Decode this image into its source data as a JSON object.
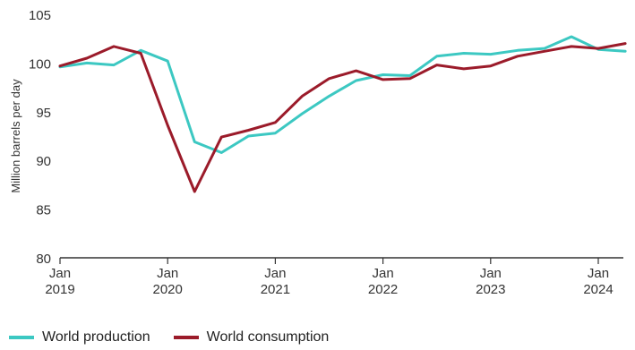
{
  "chart_data": {
    "type": "line",
    "title": "",
    "xlabel": "",
    "ylabel": "Million barrels per day",
    "ylim": [
      80,
      105
    ],
    "yticks": [
      80,
      85,
      90,
      95,
      100,
      105
    ],
    "xlim": [
      2019.0,
      2024.5
    ],
    "xticks": [
      {
        "x": 2019,
        "line1": "Jan",
        "line2": "2019"
      },
      {
        "x": 2020,
        "line1": "Jan",
        "line2": "2020"
      },
      {
        "x": 2021,
        "line1": "Jan",
        "line2": "2021"
      },
      {
        "x": 2022,
        "line1": "Jan",
        "line2": "2022"
      },
      {
        "x": 2023,
        "line1": "Jan",
        "line2": "2023"
      },
      {
        "x": 2024,
        "line1": "Jan",
        "line2": "2024"
      }
    ],
    "grid": false,
    "legend_position": "bottom-left",
    "x": [
      2019.0,
      2019.25,
      2019.5,
      2019.75,
      2020.0,
      2020.25,
      2020.5,
      2020.75,
      2021.0,
      2021.25,
      2021.5,
      2021.75,
      2022.0,
      2022.25,
      2022.5,
      2022.75,
      2023.0,
      2023.25,
      2023.5,
      2023.75,
      2024.0,
      2024.25
    ],
    "series": [
      {
        "name": "World production",
        "color": "#3cc8c2",
        "values": [
          99.6,
          100.0,
          99.8,
          101.3,
          100.2,
          91.9,
          90.8,
          92.5,
          92.8,
          94.8,
          96.6,
          98.2,
          98.8,
          98.7,
          100.7,
          101.0,
          100.9,
          101.3,
          101.5,
          102.7,
          101.4,
          101.2
        ]
      },
      {
        "name": "World consumption",
        "color": "#9b1b2a",
        "values": [
          99.7,
          100.5,
          101.7,
          101.0,
          93.6,
          86.8,
          92.4,
          93.1,
          93.9,
          96.6,
          98.4,
          99.2,
          98.3,
          98.4,
          99.8,
          99.4,
          99.7,
          100.7,
          101.2,
          101.7,
          101.5,
          102.0
        ]
      }
    ]
  }
}
